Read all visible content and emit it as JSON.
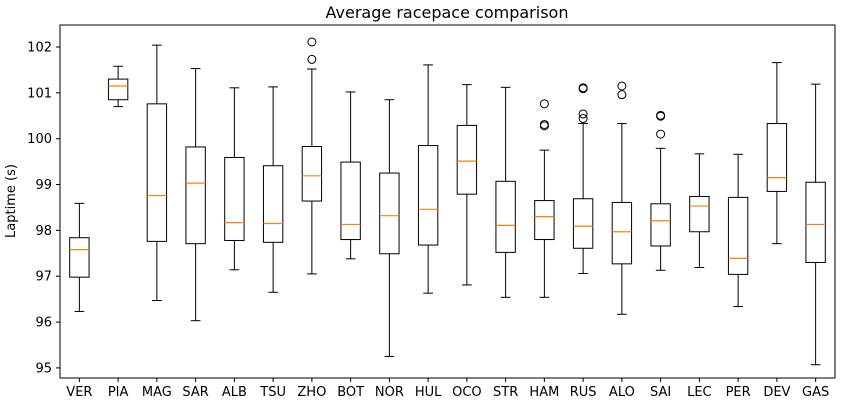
{
  "chart_data": {
    "type": "boxplot",
    "title": "Average racepace comparison",
    "xlabel": "",
    "ylabel": "Laptime (s)",
    "ylim": [
      94.78,
      102.48
    ],
    "yticks": [
      95,
      96,
      97,
      98,
      99,
      100,
      101,
      102
    ],
    "grid": false,
    "categories": [
      "VER",
      "PIA",
      "MAG",
      "SAR",
      "ALB",
      "TSU",
      "ZHO",
      "BOT",
      "NOR",
      "HUL",
      "OCO",
      "STR",
      "HAM",
      "RUS",
      "ALO",
      "SAI",
      "LEC",
      "PER",
      "DEV",
      "GAS"
    ],
    "boxes": [
      {
        "whisker_low": 96.23,
        "q1": 96.98,
        "median": 97.58,
        "q3": 97.84,
        "whisker_high": 98.59,
        "outliers": []
      },
      {
        "whisker_low": 100.7,
        "q1": 100.85,
        "median": 101.15,
        "q3": 101.3,
        "whisker_high": 101.58,
        "outliers": []
      },
      {
        "whisker_low": 96.47,
        "q1": 97.76,
        "median": 98.76,
        "q3": 100.76,
        "whisker_high": 102.04,
        "outliers": []
      },
      {
        "whisker_low": 96.03,
        "q1": 97.71,
        "median": 99.03,
        "q3": 99.82,
        "whisker_high": 101.53,
        "outliers": []
      },
      {
        "whisker_low": 97.14,
        "q1": 97.78,
        "median": 98.17,
        "q3": 99.59,
        "whisker_high": 101.11,
        "outliers": []
      },
      {
        "whisker_low": 96.65,
        "q1": 97.74,
        "median": 98.15,
        "q3": 99.41,
        "whisker_high": 101.13,
        "outliers": []
      },
      {
        "whisker_low": 97.05,
        "q1": 98.64,
        "median": 99.19,
        "q3": 99.83,
        "whisker_high": 101.52,
        "outliers": [
          101.73,
          102.11
        ]
      },
      {
        "whisker_low": 97.38,
        "q1": 97.8,
        "median": 98.13,
        "q3": 99.49,
        "whisker_high": 101.02,
        "outliers": []
      },
      {
        "whisker_low": 95.25,
        "q1": 97.49,
        "median": 98.32,
        "q3": 99.25,
        "whisker_high": 100.85,
        "outliers": []
      },
      {
        "whisker_low": 96.63,
        "q1": 97.68,
        "median": 98.46,
        "q3": 99.85,
        "whisker_high": 101.61,
        "outliers": []
      },
      {
        "whisker_low": 96.81,
        "q1": 98.79,
        "median": 99.51,
        "q3": 100.29,
        "whisker_high": 101.18,
        "outliers": []
      },
      {
        "whisker_low": 96.54,
        "q1": 97.52,
        "median": 98.11,
        "q3": 99.07,
        "whisker_high": 101.12,
        "outliers": []
      },
      {
        "whisker_low": 96.54,
        "q1": 97.8,
        "median": 98.3,
        "q3": 98.65,
        "whisker_high": 99.75,
        "outliers": [
          100.28,
          100.31,
          100.76
        ]
      },
      {
        "whisker_low": 97.06,
        "q1": 97.61,
        "median": 98.09,
        "q3": 98.69,
        "whisker_high": 100.33,
        "outliers": [
          100.44,
          100.54,
          101.09,
          101.11
        ]
      },
      {
        "whisker_low": 96.17,
        "q1": 97.27,
        "median": 97.97,
        "q3": 98.61,
        "whisker_high": 100.33,
        "outliers": [
          100.96,
          101.15
        ]
      },
      {
        "whisker_low": 97.13,
        "q1": 97.66,
        "median": 98.21,
        "q3": 98.58,
        "whisker_high": 99.79,
        "outliers": [
          100.1,
          100.49,
          100.51
        ]
      },
      {
        "whisker_low": 97.19,
        "q1": 97.97,
        "median": 98.53,
        "q3": 98.74,
        "whisker_high": 99.67,
        "outliers": []
      },
      {
        "whisker_low": 96.34,
        "q1": 97.04,
        "median": 97.39,
        "q3": 98.72,
        "whisker_high": 99.66,
        "outliers": []
      },
      {
        "whisker_low": 97.71,
        "q1": 98.85,
        "median": 99.15,
        "q3": 100.33,
        "whisker_high": 101.66,
        "outliers": []
      },
      {
        "whisker_low": 95.07,
        "q1": 97.3,
        "median": 98.13,
        "q3": 99.05,
        "whisker_high": 101.19,
        "outliers": []
      }
    ],
    "colors": {
      "box": "#000000",
      "median": "#ff7f0e",
      "outlier": "#000000",
      "background": "#ffffff"
    }
  }
}
